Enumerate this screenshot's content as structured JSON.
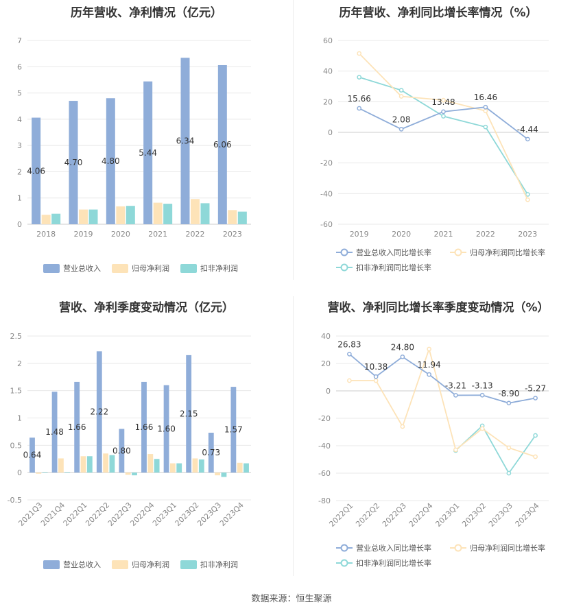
{
  "colors": {
    "revenue": "#8fadd9",
    "parent_profit": "#fde3b8",
    "deducted_profit": "#8ed8d8",
    "grid": "#e8e8e8",
    "axis_text": "#888888",
    "label_text": "#333333"
  },
  "source": "数据来源：恒生聚源",
  "chart_data": [
    {
      "id": "annual-bar",
      "type": "bar",
      "title": "历年营收、净利情况（亿元）",
      "categories": [
        "2018",
        "2019",
        "2020",
        "2021",
        "2022",
        "2023"
      ],
      "series": [
        {
          "name": "营业总收入",
          "values": [
            4.06,
            4.7,
            4.8,
            5.44,
            6.34,
            6.06
          ],
          "labels": [
            "4.06",
            "4.70",
            "4.80",
            "5.44",
            "6.34",
            "6.06"
          ]
        },
        {
          "name": "归母净利润",
          "values": [
            0.36,
            0.56,
            0.68,
            0.82,
            0.96,
            0.54
          ]
        },
        {
          "name": "扣非净利润",
          "values": [
            0.4,
            0.56,
            0.7,
            0.78,
            0.8,
            0.48
          ]
        }
      ],
      "yticks": [
        "0",
        "1",
        "2",
        "3",
        "4",
        "5",
        "6",
        "7"
      ],
      "ylim": [
        0,
        7
      ],
      "grid": true,
      "legend": "bottom"
    },
    {
      "id": "annual-line",
      "type": "line",
      "title": "历年营收、净利同比增长率情况（%）",
      "categories": [
        "2019",
        "2020",
        "2021",
        "2022",
        "2023"
      ],
      "series": [
        {
          "name": "营业总收入同比增长率",
          "values": [
            15.66,
            2.08,
            13.48,
            16.46,
            -4.44
          ],
          "labels": [
            "15.66",
            "2.08",
            "13.48",
            "16.46",
            "-4.44"
          ]
        },
        {
          "name": "归母净利润同比增长率",
          "values": [
            51.5,
            23.5,
            21.0,
            14.0,
            -44.0
          ]
        },
        {
          "name": "扣非净利润同比增长率",
          "values": [
            36.0,
            27.5,
            10.5,
            3.5,
            -40.5
          ]
        }
      ],
      "yticks": [
        "60",
        "40",
        "20",
        "0",
        "-20",
        "-40",
        "-60"
      ],
      "ylim": [
        -60,
        60
      ],
      "grid": true,
      "legend": "bottom"
    },
    {
      "id": "quarter-bar",
      "type": "bar",
      "title": "营收、净利季度变动情况（亿元）",
      "categories": [
        "2021Q3",
        "2021Q4",
        "2022Q1",
        "2022Q2",
        "2022Q3",
        "2022Q4",
        "2023Q1",
        "2023Q2",
        "2023Q3",
        "2023Q4"
      ],
      "series": [
        {
          "name": "营业总收入",
          "values": [
            0.64,
            1.48,
            1.66,
            2.22,
            0.8,
            1.66,
            1.6,
            2.15,
            0.73,
            1.57
          ],
          "labels": [
            "0.64",
            "1.48",
            "1.66",
            "2.22",
            "0.80",
            "1.66",
            "1.60",
            "2.15",
            "0.73",
            "1.57"
          ]
        },
        {
          "name": "归母净利润",
          "values": [
            -0.02,
            0.26,
            0.3,
            0.35,
            -0.04,
            0.34,
            0.17,
            0.26,
            -0.05,
            0.18
          ]
        },
        {
          "name": "扣非净利润",
          "values": [
            -0.01,
            0.0,
            0.3,
            0.32,
            -0.05,
            0.25,
            0.17,
            0.24,
            -0.08,
            0.17
          ]
        }
      ],
      "yticks": [
        "2.5",
        "2",
        "1.5",
        "1",
        "0.5",
        "0",
        "-0.5"
      ],
      "ylim": [
        -0.5,
        2.5
      ],
      "grid": true,
      "legend": "bottom"
    },
    {
      "id": "quarter-line",
      "type": "line",
      "title": "营收、净利同比增长率季度变动情况（%）",
      "categories": [
        "2022Q1",
        "2022Q2",
        "2022Q3",
        "2022Q4",
        "2023Q1",
        "2023Q2",
        "2023Q3",
        "2023Q4"
      ],
      "series": [
        {
          "name": "营业总收入同比增长率",
          "values": [
            26.83,
            10.38,
            24.8,
            11.94,
            -3.21,
            -3.13,
            -8.9,
            -5.27
          ],
          "labels": [
            "26.83",
            "10.38",
            "24.80",
            "11.94",
            "-3.21",
            "-3.13",
            "-8.90",
            "-5.27"
          ]
        },
        {
          "name": "归母净利润同比增长率",
          "values": [
            7.5,
            7.5,
            -26.0,
            30.5,
            -43.0,
            -27.5,
            -41.5,
            -48.0
          ]
        },
        {
          "name": "扣非净利润同比增长率",
          "values": [
            null,
            null,
            null,
            null,
            -43.5,
            -25.5,
            -60.0,
            -32.5
          ]
        }
      ],
      "yticks": [
        "40",
        "20",
        "0",
        "-20",
        "-40",
        "-60",
        "-80"
      ],
      "ylim": [
        -80,
        40
      ],
      "grid": true,
      "legend": "bottom"
    }
  ]
}
